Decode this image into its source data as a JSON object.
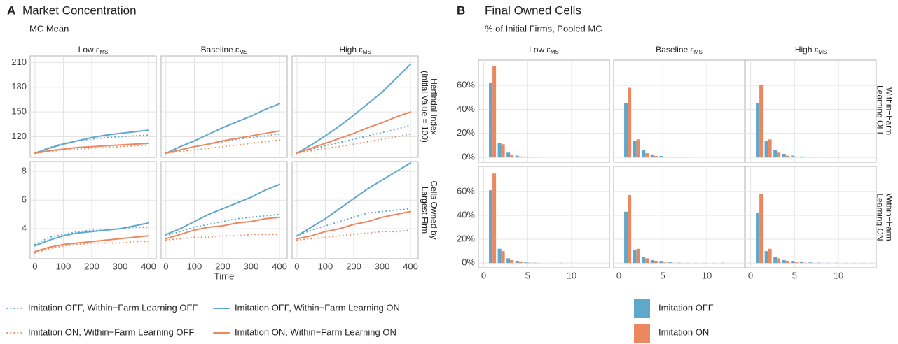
{
  "chart_data": [
    {
      "type": "line",
      "tag": "A",
      "title": "Market Concentration",
      "subtitle": "MC Mean",
      "xlabel": "Time",
      "x": [
        0,
        50,
        100,
        150,
        200,
        250,
        300,
        350,
        400
      ],
      "xlim": [
        -17,
        427
      ],
      "xticks": [
        0,
        100,
        200,
        300,
        400
      ],
      "grid": true,
      "legend": "bottom",
      "columns": [
        {
          "label": "Low ε",
          "subscript": "MS"
        },
        {
          "label": "Baseline ε",
          "subscript": "MS"
        },
        {
          "label": "High ε",
          "subscript": "MS"
        }
      ],
      "series": [
        {
          "name": "Imitation OFF, Within−Farm Learning OFF",
          "color": "#5fa8cc",
          "dash": "dotted"
        },
        {
          "name": "Imitation OFF, Within−Farm Learning ON",
          "color": "#5fa8cc",
          "dash": "solid"
        },
        {
          "name": "Imitation ON, Within−Farm Learning OFF",
          "color": "#ec8860",
          "dash": "dotted"
        },
        {
          "name": "Imitation ON, Within−Farm Learning ON",
          "color": "#ec8860",
          "dash": "solid"
        }
      ],
      "rows": [
        {
          "label": [
            "Herfindal Index",
            "(Initial Value = 100)"
          ],
          "ylim": [
            95,
            218
          ],
          "yticks": [
            120,
            150,
            180,
            210
          ],
          "panels": [
            {
              "values": [
                [
                  100,
                  107,
                  112,
                  115,
                  117,
                  119,
                  120,
                  121,
                  122
                ],
                [
                  100,
                  106,
                  111,
                  115,
                  119,
                  122,
                  124,
                  126,
                  128
                ],
                [
                  100,
                  102,
                  104,
                  105,
                  106,
                  107,
                  108,
                  109,
                  110
                ],
                [
                  100,
                  103,
                  105,
                  107,
                  108,
                  109,
                  110,
                  111,
                  112
                ]
              ]
            },
            {
              "values": [
                [
                  100,
                  104,
                  108,
                  111,
                  114,
                  117,
                  119,
                  121,
                  123
                ],
                [
                  100,
                  108,
                  115,
                  123,
                  131,
                  138,
                  145,
                  153,
                  160
                ],
                [
                  100,
                  102,
                  104,
                  106,
                  108,
                  110,
                  112,
                  114,
                  116
                ],
                [
                  100,
                  104,
                  108,
                  111,
                  115,
                  118,
                  121,
                  124,
                  127
                ]
              ]
            },
            {
              "values": [
                [
                  100,
                  105,
                  109,
                  113,
                  117,
                  121,
                  125,
                  129,
                  134
                ],
                [
                  100,
                  110,
                  121,
                  133,
                  146,
                  160,
                  174,
                  191,
                  208
                ],
                [
                  100,
                  103,
                  106,
                  108,
                  111,
                  114,
                  117,
                  120,
                  123
                ],
                [
                  100,
                  106,
                  112,
                  118,
                  124,
                  131,
                  137,
                  144,
                  150
                ]
              ]
            }
          ]
        },
        {
          "label": [
            "Cells Owned by",
            "Largest Firm"
          ],
          "ylim": [
            1.9,
            8.7
          ],
          "yticks": [
            4,
            6,
            8
          ],
          "panels": [
            {
              "values": [
                [
                  2.9,
                  3.4,
                  3.6,
                  3.8,
                  3.9,
                  3.9,
                  4.0,
                  4.1,
                  4.1
                ],
                [
                  2.8,
                  3.2,
                  3.5,
                  3.7,
                  3.8,
                  3.9,
                  4.0,
                  4.2,
                  4.4
                ],
                [
                  2.3,
                  2.6,
                  2.8,
                  2.9,
                  3.0,
                  3.0,
                  3.0,
                  3.1,
                  3.1
                ],
                [
                  2.4,
                  2.7,
                  2.9,
                  3.0,
                  3.1,
                  3.2,
                  3.3,
                  3.4,
                  3.5
                ]
              ]
            },
            {
              "values": [
                [
                  3.5,
                  3.8,
                  4.1,
                  4.3,
                  4.5,
                  4.7,
                  4.8,
                  4.9,
                  5.0
                ],
                [
                  3.6,
                  4.0,
                  4.5,
                  5.0,
                  5.4,
                  5.8,
                  6.2,
                  6.7,
                  7.1
                ],
                [
                  3.2,
                  3.3,
                  3.4,
                  3.4,
                  3.5,
                  3.5,
                  3.6,
                  3.6,
                  3.6
                ],
                [
                  3.3,
                  3.6,
                  3.9,
                  4.1,
                  4.2,
                  4.4,
                  4.5,
                  4.7,
                  4.8
                ]
              ]
            },
            {
              "values": [
                [
                  3.5,
                  3.9,
                  4.2,
                  4.5,
                  4.8,
                  5.1,
                  5.2,
                  5.3,
                  5.4
                ],
                [
                  3.5,
                  4.1,
                  4.7,
                  5.4,
                  6.1,
                  6.8,
                  7.4,
                  8.0,
                  8.6
                ],
                [
                  3.2,
                  3.3,
                  3.4,
                  3.5,
                  3.6,
                  3.7,
                  3.8,
                  3.8,
                  3.9
                ],
                [
                  3.3,
                  3.5,
                  3.8,
                  4.0,
                  4.3,
                  4.5,
                  4.8,
                  5.0,
                  5.2
                ]
              ]
            }
          ]
        }
      ]
    },
    {
      "type": "bar",
      "tag": "B",
      "title": "Final Owned Cells",
      "subtitle": "% of Initial Firms, Pooled MC",
      "x": [
        1,
        2,
        3,
        4,
        5,
        6,
        7,
        8,
        9,
        10,
        11,
        12,
        13,
        14
      ],
      "xlim": [
        -0.6,
        14.3
      ],
      "xticks": [
        0,
        5,
        10
      ],
      "grid": true,
      "legend": "bottom",
      "columns": [
        {
          "label": "Low ε",
          "subscript": "MS"
        },
        {
          "label": "Baseline ε",
          "subscript": "MS"
        },
        {
          "label": "High ε",
          "subscript": "MS"
        }
      ],
      "series": [
        {
          "name": "Imitation OFF",
          "color": "#5fa8cc"
        },
        {
          "name": "Imitation ON",
          "color": "#ec8860"
        }
      ],
      "rows": [
        {
          "label": [
            "Within−Farm",
            "Learning OFF"
          ],
          "ylim": [
            -4,
            81
          ],
          "yticks": [
            {
              "value": 0,
              "label": "0%"
            },
            {
              "value": 20,
              "label": "20%"
            },
            {
              "value": 40,
              "label": "40%"
            },
            {
              "value": 60,
              "label": "60%"
            }
          ],
          "panels": [
            {
              "values": [
                [
                  62,
                  12,
                  4,
                  1.5,
                  0.7,
                  0.3,
                  0,
                  0,
                  0,
                  0,
                  0,
                  0,
                  0,
                  0
                ],
                [
                  76,
                  11,
                  2.5,
                  0.8,
                  0.3,
                  0.1,
                  0,
                  0,
                  0,
                  0,
                  0,
                  0,
                  0,
                  0
                ]
              ]
            },
            {
              "values": [
                [
                  45,
                  14,
                  6,
                  2.5,
                  1.2,
                  0.6,
                  0.3,
                  0.2,
                  0,
                  0,
                  0,
                  0,
                  0,
                  0
                ],
                [
                  58,
                  15,
                  3.5,
                  1.2,
                  0.4,
                  0.2,
                  0.1,
                  0,
                  0,
                  0,
                  0,
                  0,
                  0,
                  0
                ]
              ]
            },
            {
              "values": [
                [
                  45,
                  14,
                  6,
                  3,
                  1.5,
                  0.8,
                  0.5,
                  0.3,
                  0.2,
                  0.1,
                  0,
                  0,
                  0,
                  0
                ],
                [
                  60,
                  15,
                  4,
                  1.5,
                  0.5,
                  0.2,
                  0.1,
                  0,
                  0,
                  0,
                  0,
                  0,
                  0,
                  0
                ]
              ]
            }
          ]
        },
        {
          "label": [
            "Within−Farm",
            "Learning ON"
          ],
          "ylim": [
            -4,
            81
          ],
          "yticks": [
            {
              "value": 0,
              "label": "0%"
            },
            {
              "value": 20,
              "label": "20%"
            },
            {
              "value": 40,
              "label": "40%"
            },
            {
              "value": 60,
              "label": "60%"
            }
          ],
          "panels": [
            {
              "values": [
                [
                  61,
                  12,
                  4,
                  1.5,
                  0.6,
                  0.3,
                  0,
                  0,
                  0.2,
                  0,
                  0,
                  0,
                  0,
                  0
                ],
                [
                  75,
                  10,
                  2.5,
                  0.8,
                  0.3,
                  0.1,
                  0,
                  0,
                  0,
                  0,
                  0,
                  0,
                  0,
                  0
                ]
              ]
            },
            {
              "values": [
                [
                  43,
                  11,
                  5,
                  2.5,
                  1.2,
                  0.6,
                  0.3,
                  0.2,
                  0.1,
                  0.1,
                  0.1,
                  0.2,
                  0,
                  0
                ],
                [
                  57,
                  12,
                  4,
                  1.3,
                  0.5,
                  0.2,
                  0.1,
                  0,
                  0,
                  0,
                  0,
                  0,
                  0,
                  0
                ]
              ]
            },
            {
              "values": [
                [
                  42,
                  10,
                  5,
                  2.5,
                  1.5,
                  0.8,
                  0.5,
                  0.3,
                  0.2,
                  0.2,
                  0.1,
                  0.1,
                  0.1,
                  0.1
                ],
                [
                  58,
                  12,
                  4,
                  1.5,
                  0.6,
                  0.3,
                  0.1,
                  0,
                  0,
                  0,
                  0,
                  0,
                  0,
                  0
                ]
              ]
            }
          ]
        }
      ]
    }
  ]
}
